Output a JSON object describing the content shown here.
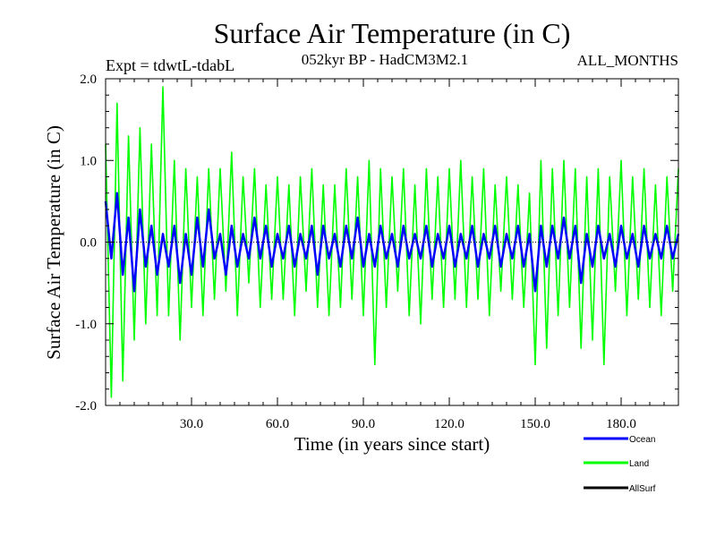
{
  "chart_data": {
    "type": "line",
    "title": "Surface Air Temperature (in C)",
    "subtitle_left": "Expt = tdwtL-tdabL",
    "subtitle_center": "052kyr BP - HadCM3M2.1",
    "subtitle_right": "ALL_MONTHS",
    "xlabel": "Time (in years since start)",
    "ylabel": "Surface Air Temperature (in C)",
    "xlim": [
      0,
      200
    ],
    "ylim": [
      -2.0,
      2.0
    ],
    "x_ticks": [
      30,
      60,
      90,
      120,
      150,
      180
    ],
    "x_tick_labels": [
      "30.0",
      "60.0",
      "90.0",
      "120.0",
      "150.0",
      "180.0"
    ],
    "y_ticks": [
      -2,
      -1,
      0,
      1,
      2
    ],
    "y_tick_labels": [
      "-2.0",
      "-1.0",
      "0.0",
      "1.0",
      "2.0"
    ],
    "zero_line": true,
    "colors": {
      "ocean": "#0000ff",
      "land": "#00ff00",
      "allsurf": "#000000"
    },
    "series": [
      {
        "name": "Land",
        "key": "land",
        "x": [
          0,
          2,
          4,
          6,
          8,
          10,
          12,
          14,
          16,
          18,
          20,
          22,
          24,
          26,
          28,
          30,
          32,
          34,
          36,
          38,
          40,
          42,
          44,
          46,
          48,
          50,
          52,
          54,
          56,
          58,
          60,
          62,
          64,
          66,
          68,
          70,
          72,
          74,
          76,
          78,
          80,
          82,
          84,
          86,
          88,
          90,
          92,
          94,
          96,
          98,
          100,
          102,
          104,
          106,
          108,
          110,
          112,
          114,
          116,
          118,
          120,
          122,
          124,
          126,
          128,
          130,
          132,
          134,
          136,
          138,
          140,
          142,
          144,
          146,
          148,
          150,
          152,
          154,
          156,
          158,
          160,
          162,
          164,
          166,
          168,
          170,
          172,
          174,
          176,
          178,
          180,
          182,
          184,
          186,
          188,
          190,
          192,
          194,
          196,
          198,
          200
        ],
        "values": [
          1.2,
          -1.9,
          1.7,
          -1.7,
          1.3,
          -1.2,
          1.4,
          -1.0,
          1.2,
          -0.9,
          1.9,
          -0.9,
          1.0,
          -1.2,
          0.9,
          -0.8,
          0.8,
          -0.9,
          0.9,
          -0.7,
          0.9,
          -0.6,
          1.1,
          -0.9,
          0.8,
          -0.5,
          0.9,
          -0.8,
          0.7,
          -0.7,
          0.8,
          -0.7,
          0.7,
          -0.9,
          0.8,
          -0.6,
          0.9,
          -0.8,
          0.7,
          -0.9,
          0.7,
          -0.8,
          0.9,
          -0.7,
          0.8,
          -0.9,
          1.0,
          -1.5,
          0.9,
          -0.8,
          0.8,
          -0.6,
          0.9,
          -0.9,
          0.7,
          -1.0,
          0.9,
          -0.7,
          0.8,
          -0.8,
          0.9,
          -0.7,
          1.0,
          -0.8,
          0.8,
          -0.7,
          0.9,
          -0.9,
          0.7,
          -0.6,
          0.8,
          -0.7,
          0.7,
          -0.8,
          0.6,
          -1.5,
          1.0,
          -1.3,
          0.9,
          -0.9,
          1.0,
          -0.8,
          0.9,
          -1.3,
          0.8,
          -1.2,
          0.9,
          -1.5,
          0.8,
          -0.6,
          1.0,
          -0.9,
          0.8,
          -0.7,
          0.9,
          -0.8,
          0.7,
          -0.9,
          0.8,
          -0.6,
          0.9
        ]
      },
      {
        "name": "Ocean",
        "key": "ocean",
        "x": [
          0,
          2,
          4,
          6,
          8,
          10,
          12,
          14,
          16,
          18,
          20,
          22,
          24,
          26,
          28,
          30,
          32,
          34,
          36,
          38,
          40,
          42,
          44,
          46,
          48,
          50,
          52,
          54,
          56,
          58,
          60,
          62,
          64,
          66,
          68,
          70,
          72,
          74,
          76,
          78,
          80,
          82,
          84,
          86,
          88,
          90,
          92,
          94,
          96,
          98,
          100,
          102,
          104,
          106,
          108,
          110,
          112,
          114,
          116,
          118,
          120,
          122,
          124,
          126,
          128,
          130,
          132,
          134,
          136,
          138,
          140,
          142,
          144,
          146,
          148,
          150,
          152,
          154,
          156,
          158,
          160,
          162,
          164,
          166,
          168,
          170,
          172,
          174,
          176,
          178,
          180,
          182,
          184,
          186,
          188,
          190,
          192,
          194,
          196,
          198,
          200
        ],
        "values": [
          0.5,
          -0.2,
          0.6,
          -0.4,
          0.3,
          -0.6,
          0.4,
          -0.3,
          0.2,
          -0.4,
          0.1,
          -0.3,
          0.2,
          -0.5,
          0.1,
          -0.4,
          0.3,
          -0.3,
          0.4,
          -0.2,
          0.1,
          -0.4,
          0.2,
          -0.3,
          0.1,
          -0.2,
          0.3,
          -0.2,
          0.2,
          -0.3,
          0.1,
          -0.2,
          0.2,
          -0.3,
          0.1,
          -0.2,
          0.2,
          -0.4,
          0.2,
          -0.2,
          0.1,
          -0.3,
          0.2,
          -0.2,
          0.3,
          -0.3,
          0.1,
          -0.3,
          0.2,
          -0.2,
          0.1,
          -0.3,
          0.2,
          -0.2,
          0.1,
          -0.2,
          0.2,
          -0.3,
          0.1,
          -0.2,
          0.2,
          -0.3,
          0.1,
          -0.2,
          0.2,
          -0.3,
          0.1,
          -0.2,
          0.2,
          -0.3,
          0.1,
          -0.2,
          0.2,
          -0.3,
          0.1,
          -0.6,
          0.2,
          -0.3,
          0.2,
          -0.2,
          0.3,
          -0.2,
          0.2,
          -0.5,
          0.1,
          -0.3,
          0.2,
          -0.2,
          0.1,
          -0.3,
          0.2,
          -0.2,
          0.1,
          -0.3,
          0.2,
          -0.2,
          0.1,
          -0.2,
          0.2,
          -0.2,
          0.1
        ]
      }
    ],
    "legend": [
      {
        "key": "ocean",
        "label": "Ocean"
      },
      {
        "key": "land",
        "label": "Land"
      },
      {
        "key": "allsurf",
        "label": "AllSurf"
      }
    ],
    "legend_position": "bottom-right"
  }
}
